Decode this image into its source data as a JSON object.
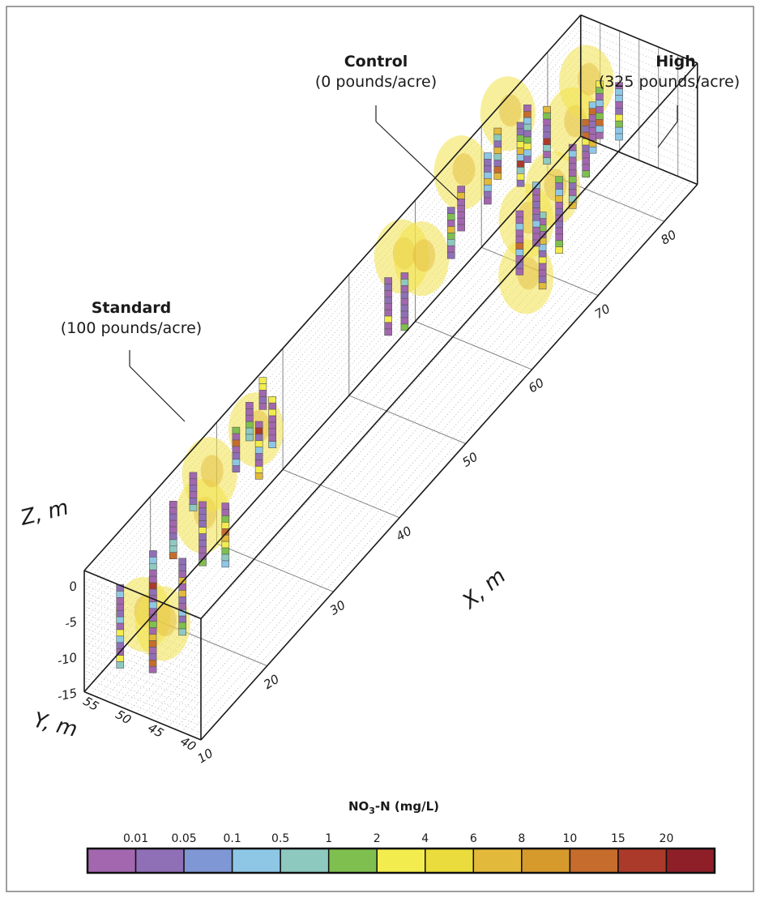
{
  "chart_data": {
    "type": "scatter",
    "subtype": "3d-borehole-voxel",
    "xlabel": "X, m",
    "ylabel": "Y, m",
    "zlabel": "Z, m",
    "x_ticks": [
      "10",
      "20",
      "30",
      "40",
      "50",
      "60",
      "70",
      "80"
    ],
    "y_ticks": [
      "40",
      "45",
      "50",
      "55"
    ],
    "z_ticks": [
      "0",
      "-5",
      "-10",
      "-15"
    ],
    "xlim": [
      10,
      85
    ],
    "ylim": [
      40,
      58
    ],
    "zlim": [
      -15,
      2
    ],
    "plots": [
      {
        "title": "Standard",
        "subtitle": "(100 pounds/acre)"
      },
      {
        "title": "Control",
        "subtitle": "(0 pounds/acre)"
      },
      {
        "title": "High",
        "subtitle": "(325 pounds/acre)"
      }
    ],
    "legend": {
      "title_main": "NO",
      "title_sub": "3",
      "title_rest": "-N (mg/L)",
      "ticks": [
        "0.01",
        "0.05",
        "0.1",
        "0.5",
        "1",
        "2",
        "4",
        "6",
        "8",
        "10",
        "15",
        "20"
      ],
      "colors": [
        "#a267ae",
        "#8f6fb6",
        "#7f97d4",
        "#8ec6e6",
        "#8ec9c0",
        "#7fbf4f",
        "#f2ec4e",
        "#e9dc3c",
        "#e2b93a",
        "#d69a2c",
        "#c66c2c",
        "#ac3a2a",
        "#8e1f28"
      ]
    },
    "boreholes": [
      {
        "x": 11.5,
        "y": 54,
        "ztop": -0.5,
        "zbot": -12
      },
      {
        "x": 13.5,
        "y": 51,
        "ztop": -0.3,
        "zbot": -13
      },
      {
        "x": 15.5,
        "y": 53,
        "ztop": 0.5,
        "zbot": -10
      },
      {
        "x": 17,
        "y": 50,
        "ztop": -1,
        "zbot": -11
      },
      {
        "x": 20.5,
        "y": 55,
        "ztop": 1.5,
        "zbot": -6
      },
      {
        "x": 22,
        "y": 52,
        "ztop": 1,
        "zbot": -8
      },
      {
        "x": 23.5,
        "y": 50,
        "ztop": 0,
        "zbot": -9
      },
      {
        "x": 24.5,
        "y": 56,
        "ztop": 1,
        "zbot": -4
      },
      {
        "x": 30,
        "y": 55,
        "ztop": 2,
        "zbot": -4
      },
      {
        "x": 31.5,
        "y": 53,
        "ztop": 2,
        "zbot": -6
      },
      {
        "x": 33,
        "y": 56,
        "ztop": 2,
        "zbot": -3
      },
      {
        "x": 34.5,
        "y": 54,
        "ztop": 2,
        "zbot": -5
      },
      {
        "x": 36,
        "y": 57,
        "ztop": 2,
        "zbot": -2
      },
      {
        "x": 52,
        "y": 54,
        "ztop": 0.5,
        "zbot": -7
      },
      {
        "x": 53.5,
        "y": 53,
        "ztop": 0,
        "zbot": -8
      },
      {
        "x": 61.5,
        "y": 54,
        "ztop": 0.5,
        "zbot": -6
      },
      {
        "x": 64,
        "y": 55,
        "ztop": 0.5,
        "zbot": -5
      },
      {
        "x": 68,
        "y": 55,
        "ztop": 1,
        "zbot": -6
      },
      {
        "x": 70.5,
        "y": 56,
        "ztop": 1.5,
        "zbot": -5
      },
      {
        "x": 72,
        "y": 54,
        "ztop": 1.5,
        "zbot": -7
      },
      {
        "x": 74,
        "y": 55,
        "ztop": 1.5,
        "zbot": -6
      },
      {
        "x": 75,
        "y": 53,
        "ztop": 1,
        "zbot": -7
      },
      {
        "x": 65,
        "y": 47,
        "ztop": -1,
        "zbot": -10
      },
      {
        "x": 66.5,
        "y": 45,
        "ztop": -2,
        "zbot": -12
      },
      {
        "x": 68.5,
        "y": 48,
        "ztop": -1,
        "zbot": -10
      },
      {
        "x": 70,
        "y": 46,
        "ztop": -1,
        "zbot": -11
      },
      {
        "x": 73,
        "y": 47,
        "ztop": 0,
        "zbot": -9
      },
      {
        "x": 76,
        "y": 48,
        "ztop": 0,
        "zbot": -8
      },
      {
        "x": 78,
        "y": 49,
        "ztop": 0,
        "zbot": -7
      },
      {
        "x": 80,
        "y": 50,
        "ztop": 0.5,
        "zbot": -7
      },
      {
        "x": 81,
        "y": 48,
        "ztop": 0,
        "zbot": -8
      }
    ],
    "plumes": [
      {
        "x": 13,
        "y": 52,
        "z": -5
      },
      {
        "x": 15,
        "y": 51,
        "z": -8
      },
      {
        "x": 23,
        "y": 53,
        "z": -2
      },
      {
        "x": 26,
        "y": 55,
        "z": 0
      },
      {
        "x": 33,
        "y": 55,
        "z": -1
      },
      {
        "x": 56,
        "y": 56,
        "z": -1
      },
      {
        "x": 58,
        "y": 55,
        "z": -3
      },
      {
        "x": 66,
        "y": 57,
        "z": 0
      },
      {
        "x": 73,
        "y": 57,
        "z": 1
      },
      {
        "x": 66,
        "y": 47,
        "z": -3
      },
      {
        "x": 71,
        "y": 48,
        "z": -4
      },
      {
        "x": 76,
        "y": 50,
        "z": -1
      },
      {
        "x": 80,
        "y": 52,
        "z": 0
      },
      {
        "x": 64,
        "y": 45,
        "z": -8
      }
    ]
  }
}
